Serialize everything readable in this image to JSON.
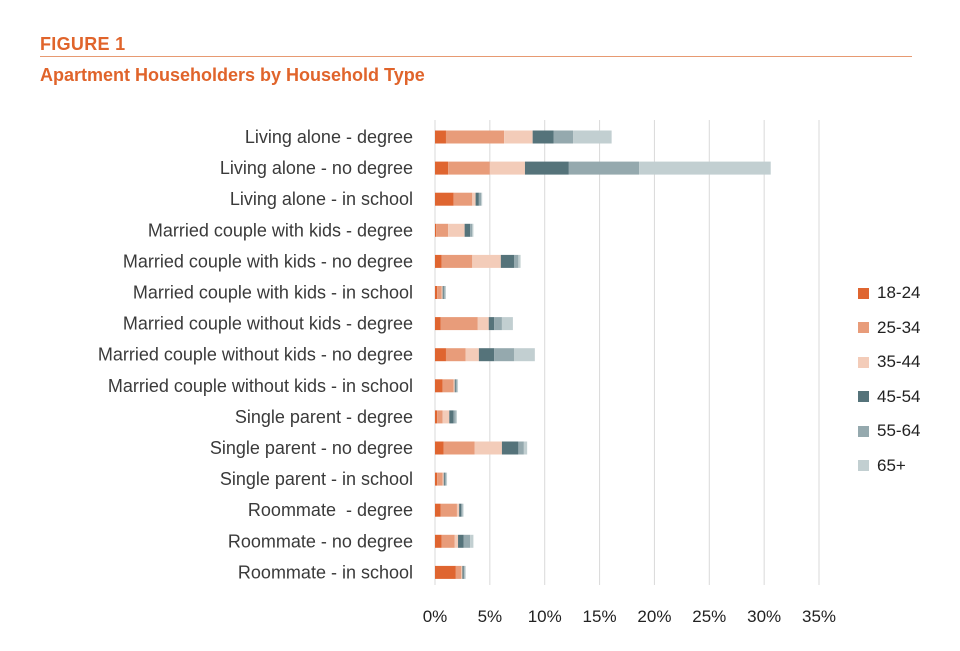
{
  "figure": {
    "label": "FIGURE 1",
    "title": "Apartment Householders by Household Type"
  },
  "chart_data": {
    "type": "bar",
    "orientation": "horizontal",
    "stacked": true,
    "title": "Apartment Householders by Household Type",
    "xlabel": "",
    "ylabel": "",
    "xlim": [
      0,
      35
    ],
    "x_ticks": [
      0,
      5,
      10,
      15,
      20,
      25,
      30,
      35
    ],
    "x_tick_labels": [
      "0%",
      "5%",
      "10%",
      "15%",
      "20%",
      "25%",
      "30%",
      "35%"
    ],
    "grid": "vertical",
    "legend_position": "right",
    "categories": [
      "Living alone - degree",
      "Living alone - no degree",
      "Living alone - in school",
      "Married couple with kids - degree",
      "Married couple with kids - no degree",
      "Married couple with kids - in school",
      "Married couple without kids - degree",
      "Married couple without kids - no degree",
      "Married couple without kids - in school",
      "Single parent - degree",
      "Single parent - no degree",
      "Single parent - in school",
      "Roommate  - degree",
      "Roommate - no degree",
      "Roommate - in school"
    ],
    "series": [
      {
        "name": "18-24",
        "color": "#df6530",
        "values": [
          1.0,
          1.2,
          1.7,
          0.1,
          0.6,
          0.2,
          0.5,
          1.0,
          0.7,
          0.2,
          0.8,
          0.2,
          0.5,
          0.6,
          1.9
        ]
      },
      {
        "name": "25-34",
        "color": "#e89c7a",
        "values": [
          5.3,
          3.8,
          1.7,
          1.1,
          2.8,
          0.4,
          3.4,
          1.8,
          1.0,
          0.5,
          2.8,
          0.5,
          1.5,
          1.2,
          0.5
        ]
      },
      {
        "name": "35-44",
        "color": "#f3ccb9",
        "values": [
          2.6,
          3.2,
          0.3,
          1.5,
          2.6,
          0.1,
          1.0,
          1.2,
          0.1,
          0.6,
          2.5,
          0.1,
          0.2,
          0.3,
          0.1
        ]
      },
      {
        "name": "45-54",
        "color": "#55737a",
        "values": [
          1.9,
          4.0,
          0.3,
          0.5,
          1.2,
          0.1,
          0.5,
          1.4,
          0.1,
          0.4,
          1.5,
          0.1,
          0.2,
          0.5,
          0.1
        ]
      },
      {
        "name": "55-64",
        "color": "#95a9ae",
        "values": [
          1.8,
          6.4,
          0.2,
          0.2,
          0.4,
          0.1,
          0.7,
          1.8,
          0.1,
          0.2,
          0.5,
          0.1,
          0.1,
          0.6,
          0.1
        ]
      },
      {
        "name": "65+",
        "color": "#c2cfd1",
        "values": [
          3.5,
          12.0,
          0.1,
          0.1,
          0.2,
          0.1,
          1.0,
          1.9,
          0.1,
          0.1,
          0.3,
          0.1,
          0.1,
          0.3,
          0.1
        ]
      }
    ]
  }
}
